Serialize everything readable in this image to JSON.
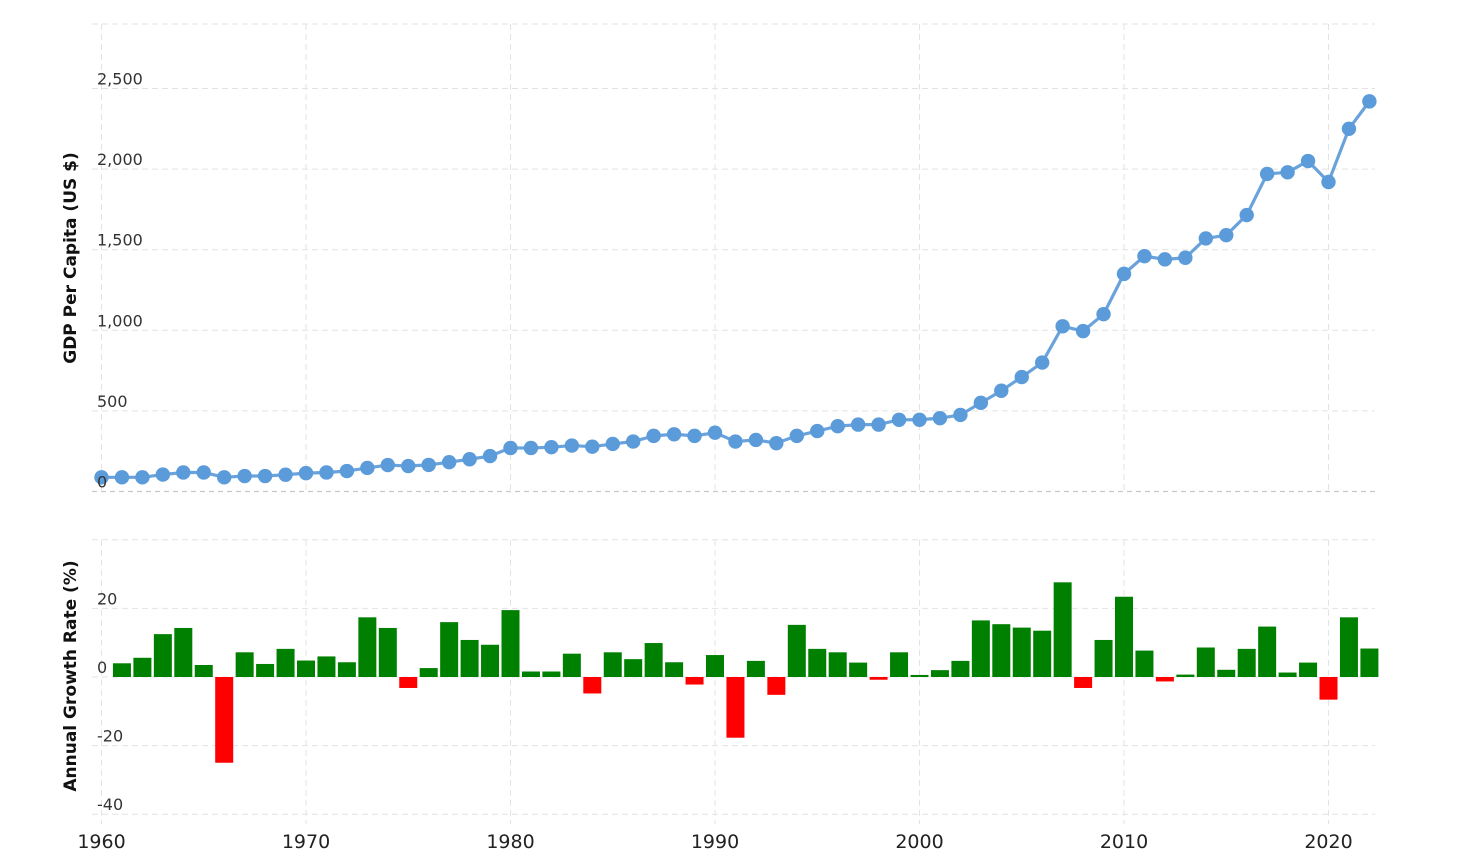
{
  "chart_data": [
    {
      "type": "line",
      "x_start_year": 1960,
      "years": [
        1960,
        1961,
        1962,
        1963,
        1964,
        1965,
        1966,
        1967,
        1968,
        1969,
        1970,
        1971,
        1972,
        1973,
        1974,
        1975,
        1976,
        1977,
        1978,
        1979,
        1980,
        1981,
        1982,
        1983,
        1984,
        1985,
        1986,
        1987,
        1988,
        1989,
        1990,
        1991,
        1992,
        1993,
        1994,
        1995,
        1996,
        1997,
        1998,
        1999,
        2000,
        2001,
        2002,
        2003,
        2004,
        2005,
        2006,
        2007,
        2008,
        2009,
        2010,
        2011,
        2012,
        2013,
        2014,
        2015,
        2016,
        2017,
        2018,
        2019,
        2020,
        2021,
        2022
      ],
      "series": [
        {
          "values": [
            88,
            88,
            88,
            105,
            118,
            118,
            88,
            96,
            96,
            104,
            114,
            118,
            127,
            146,
            164,
            158,
            165,
            182,
            200,
            220,
            270,
            270,
            275,
            285,
            278,
            295,
            310,
            345,
            355,
            345,
            365,
            310,
            320,
            300,
            345,
            375,
            405,
            415,
            415,
            445,
            445,
            455,
            475,
            550,
            625,
            710,
            800,
            1025,
            995,
            1100,
            1350,
            1460,
            1440,
            1450,
            1570,
            1590,
            1715,
            1970,
            1980,
            2050,
            1920,
            2250,
            2420
          ]
        }
      ],
      "ylabel": "GDP Per Capita (US $)",
      "ylim": [
        0,
        2900
      ],
      "y_ticks": [
        "0",
        "500",
        "1,000",
        "1,500",
        "2,000",
        "2,500"
      ],
      "y_tick_values": [
        0,
        500,
        1000,
        1500,
        2000,
        2500
      ],
      "grid": true,
      "color": "#5b9bd9"
    },
    {
      "type": "bar",
      "years": [
        1960,
        1961,
        1962,
        1963,
        1964,
        1965,
        1966,
        1967,
        1968,
        1969,
        1970,
        1971,
        1972,
        1973,
        1974,
        1975,
        1976,
        1977,
        1978,
        1979,
        1980,
        1981,
        1982,
        1983,
        1984,
        1985,
        1986,
        1987,
        1988,
        1989,
        1990,
        1991,
        1992,
        1993,
        1994,
        1995,
        1996,
        1997,
        1998,
        1999,
        2000,
        2001,
        2002,
        2003,
        2004,
        2005,
        2006,
        2007,
        2008,
        2009,
        2010,
        2011,
        2012,
        2013,
        2014,
        2015,
        2016,
        2017,
        2018,
        2019,
        2020,
        2021,
        2022
      ],
      "values": [
        null,
        4,
        5.6,
        12.5,
        14.3,
        3.5,
        -25,
        7.2,
        3.8,
        8.2,
        4.8,
        6,
        4.3,
        17.4,
        14.3,
        -3.2,
        2.6,
        16,
        10.8,
        9.4,
        19.5,
        1.6,
        1.6,
        6.8,
        -4.8,
        7.2,
        5.2,
        9.9,
        4.3,
        -2.2,
        6.4,
        -17.7,
        4.7,
        -5.2,
        15.2,
        8.2,
        7.2,
        4.2,
        -0.8,
        7.2,
        0.6,
        2,
        4.7,
        16.5,
        15.4,
        14.4,
        13.5,
        27.6,
        -3.2,
        10.8,
        23.4,
        7.7,
        -1.3,
        0.7,
        8.6,
        2.1,
        8.2,
        14.7,
        1.3,
        4.2,
        -6.6,
        17.4,
        8.3
      ],
      "ylabel": "Annual Growth Rate (%)",
      "ylim": [
        -40,
        40
      ],
      "y_ticks": [
        "-40",
        "-20",
        "0",
        "20"
      ],
      "y_tick_values": [
        -40,
        -20,
        0,
        20
      ],
      "positive_color": "#008000",
      "negative_color": "#ff0000",
      "grid": true
    }
  ],
  "x_axis": {
    "ticks": [
      "1960",
      "1970",
      "1980",
      "1990",
      "2000",
      "2010",
      "2020"
    ],
    "tick_values": [
      1960,
      1970,
      1980,
      1990,
      2000,
      2010,
      2020
    ]
  }
}
